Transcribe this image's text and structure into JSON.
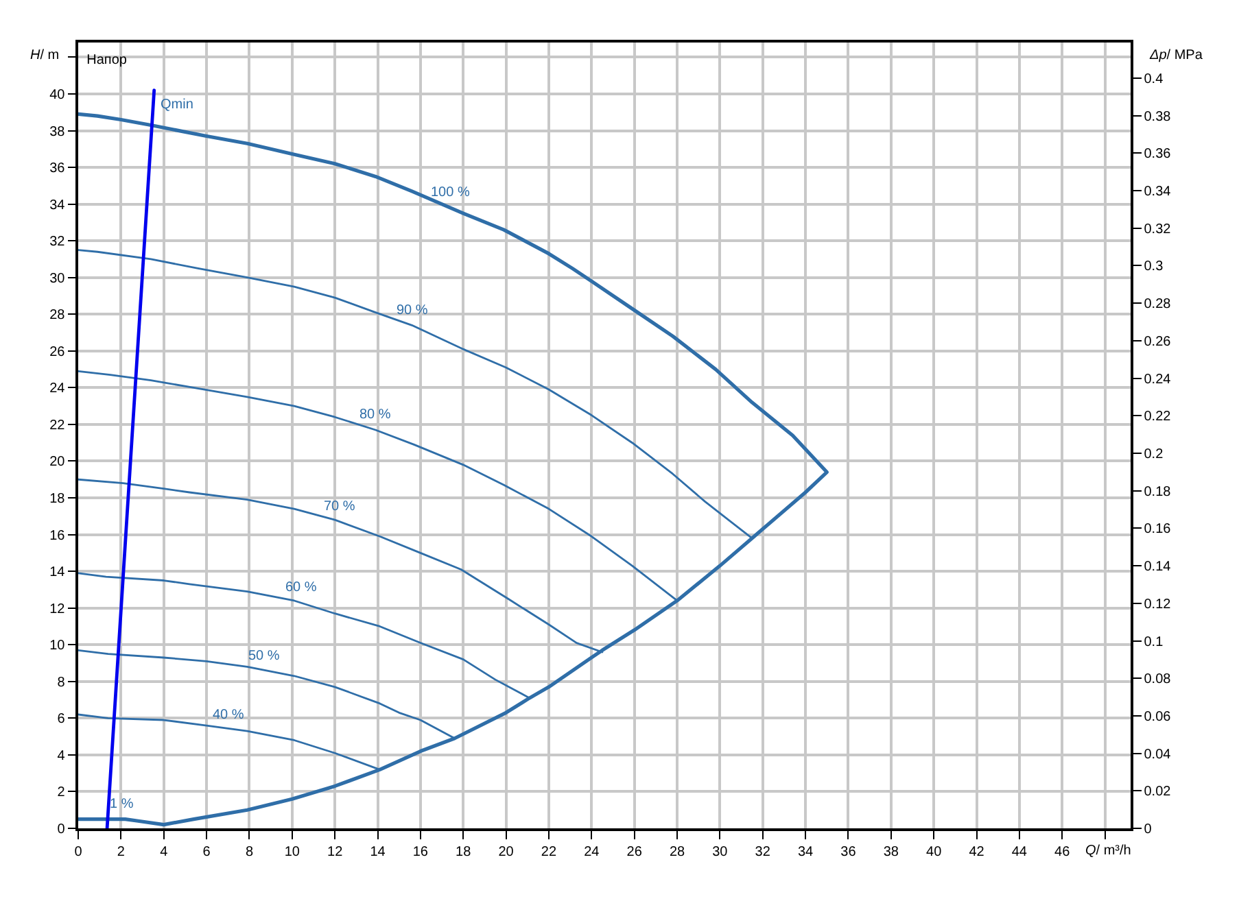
{
  "chart_data": {
    "type": "line",
    "title": "Напор",
    "xlabel": "Q/ m³/h",
    "ylabel": "H/ m",
    "y2label": "Δp/ MPa",
    "xlim": [
      0,
      49.2
    ],
    "ylim": [
      0,
      42.8
    ],
    "y2lim": [
      0,
      0.419
    ],
    "xticks": [
      0,
      2,
      4,
      6,
      8,
      10,
      12,
      14,
      16,
      18,
      20,
      22,
      24,
      26,
      28,
      30,
      32,
      34,
      36,
      38,
      40,
      42,
      44,
      46,
      {
        "value": 48,
        "label": null
      }
    ],
    "yticks": [
      0,
      2,
      4,
      6,
      8,
      10,
      12,
      14,
      16,
      18,
      20,
      22,
      24,
      26,
      28,
      30,
      32,
      34,
      36,
      38,
      40,
      {
        "value": 42,
        "label": null
      }
    ],
    "y2ticks": [
      0,
      0.02,
      0.04,
      0.06,
      0.08,
      0.1,
      0.12,
      0.14,
      0.16,
      0.18,
      0.2,
      0.22,
      0.24,
      0.26,
      0.28,
      0.3,
      0.32,
      0.34,
      0.36,
      0.38,
      0.4
    ],
    "grid": true,
    "legend": false,
    "series": [
      {
        "color": "#2f6ea8",
        "x": [
          0,
          0.9,
          2,
          3.4,
          6,
          7.9,
          10.1,
          12,
          13.9,
          15.6,
          18,
          19.9,
          22,
          23.1,
          24,
          25.9,
          27.8,
          29.8,
          31.5,
          33.4,
          35,
          34,
          32,
          31.5,
          30,
          28,
          26,
          24.5,
          24,
          22,
          21.1,
          20,
          17.6,
          16,
          14.1,
          12,
          10,
          7.9,
          5.4,
          4,
          2.8,
          2.2,
          0
        ],
        "values": [
          38.9,
          38.8,
          38.6,
          38.3,
          37.7,
          37.3,
          36.7,
          36.2,
          35.5,
          34.7,
          33.5,
          32.6,
          31.3,
          30.5,
          29.8,
          28.3,
          26.8,
          25.0,
          23.2,
          21.4,
          19.4,
          18.3,
          16.3,
          15.8,
          14.3,
          12.4,
          10.8,
          9.7,
          9.3,
          7.7,
          7.1,
          6.3,
          4.9,
          4.2,
          3.2,
          2.3,
          1.6,
          1.0,
          0.5,
          0.2,
          0.4,
          0.5,
          0.5
        ]
      },
      {
        "color": "#2f6ea8",
        "x": [
          0,
          0.9,
          3.4,
          5.6,
          7.9,
          10.1,
          12,
          13.9,
          15.6,
          18,
          20,
          22,
          24,
          25.9,
          27.8,
          29.3,
          31.5
        ],
        "values": [
          31.5,
          31.4,
          31.0,
          30.5,
          30.0,
          29.5,
          28.9,
          28.1,
          27.4,
          26.1,
          25.1,
          23.9,
          22.5,
          21.0,
          19.3,
          17.8,
          15.8
        ]
      },
      {
        "color": "#2f6ea8",
        "x": [
          0,
          1.5,
          3.4,
          5.4,
          7.9,
          10.1,
          12,
          13.9,
          15.7,
          18,
          19.9,
          22,
          24,
          25.9,
          28
        ],
        "values": [
          24.9,
          24.7,
          24.4,
          24.0,
          23.5,
          23.0,
          22.4,
          21.7,
          20.9,
          19.8,
          18.7,
          17.4,
          15.9,
          14.3,
          12.4
        ]
      },
      {
        "color": "#2f6ea8",
        "x": [
          0,
          2.1,
          4,
          5.2,
          7.9,
          10.1,
          12,
          14.1,
          16,
          17.9,
          20.1,
          22,
          23.3,
          24.5
        ],
        "values": [
          19.0,
          18.8,
          18.5,
          18.3,
          17.9,
          17.4,
          16.8,
          15.9,
          15.0,
          14.1,
          12.5,
          11.1,
          10.1,
          9.6
        ]
      },
      {
        "color": "#2f6ea8",
        "x": [
          0,
          1.3,
          4,
          5.2,
          7.9,
          10.1,
          12,
          14.1,
          16,
          18,
          19.5,
          21.1
        ],
        "values": [
          13.9,
          13.7,
          13.5,
          13.3,
          12.9,
          12.4,
          11.7,
          11.0,
          10.1,
          9.2,
          8.1,
          7.1
        ]
      },
      {
        "color": "#2f6ea8",
        "x": [
          0,
          1.4,
          4,
          6,
          7.9,
          10.1,
          12,
          14.1,
          15,
          16,
          17.6
        ],
        "values": [
          9.7,
          9.5,
          9.3,
          9.1,
          8.8,
          8.3,
          7.7,
          6.8,
          6.3,
          5.9,
          4.9
        ]
      },
      {
        "color": "#2f6ea8",
        "x": [
          0,
          1.4,
          4,
          6,
          7.9,
          10.1,
          12,
          14.1
        ],
        "values": [
          6.2,
          6.0,
          5.9,
          5.6,
          5.3,
          4.8,
          4.1,
          3.2
        ]
      },
      {
        "name": "Qmin",
        "color": "#0000ee",
        "x": [
          1.35,
          3.55
        ],
        "values": [
          0,
          40.2
        ]
      }
    ],
    "annotations": [
      {
        "text": "100 %",
        "x": 17.4,
        "y": 33.8
      },
      {
        "text": "90 %",
        "x": 15.6,
        "y": 27.4
      },
      {
        "text": "80 %",
        "x": 13.9,
        "y": 21.7
      },
      {
        "text": "70 %",
        "x": 12.2,
        "y": 16.7
      },
      {
        "text": "60 %",
        "x": 10.4,
        "y": 12.3
      },
      {
        "text": "50 %",
        "x": 8.7,
        "y": 8.6
      },
      {
        "text": "40 %",
        "x": 7.0,
        "y": 5.4
      },
      {
        "text": "1 %",
        "x": 2.0,
        "y": 0.5
      }
    ]
  }
}
